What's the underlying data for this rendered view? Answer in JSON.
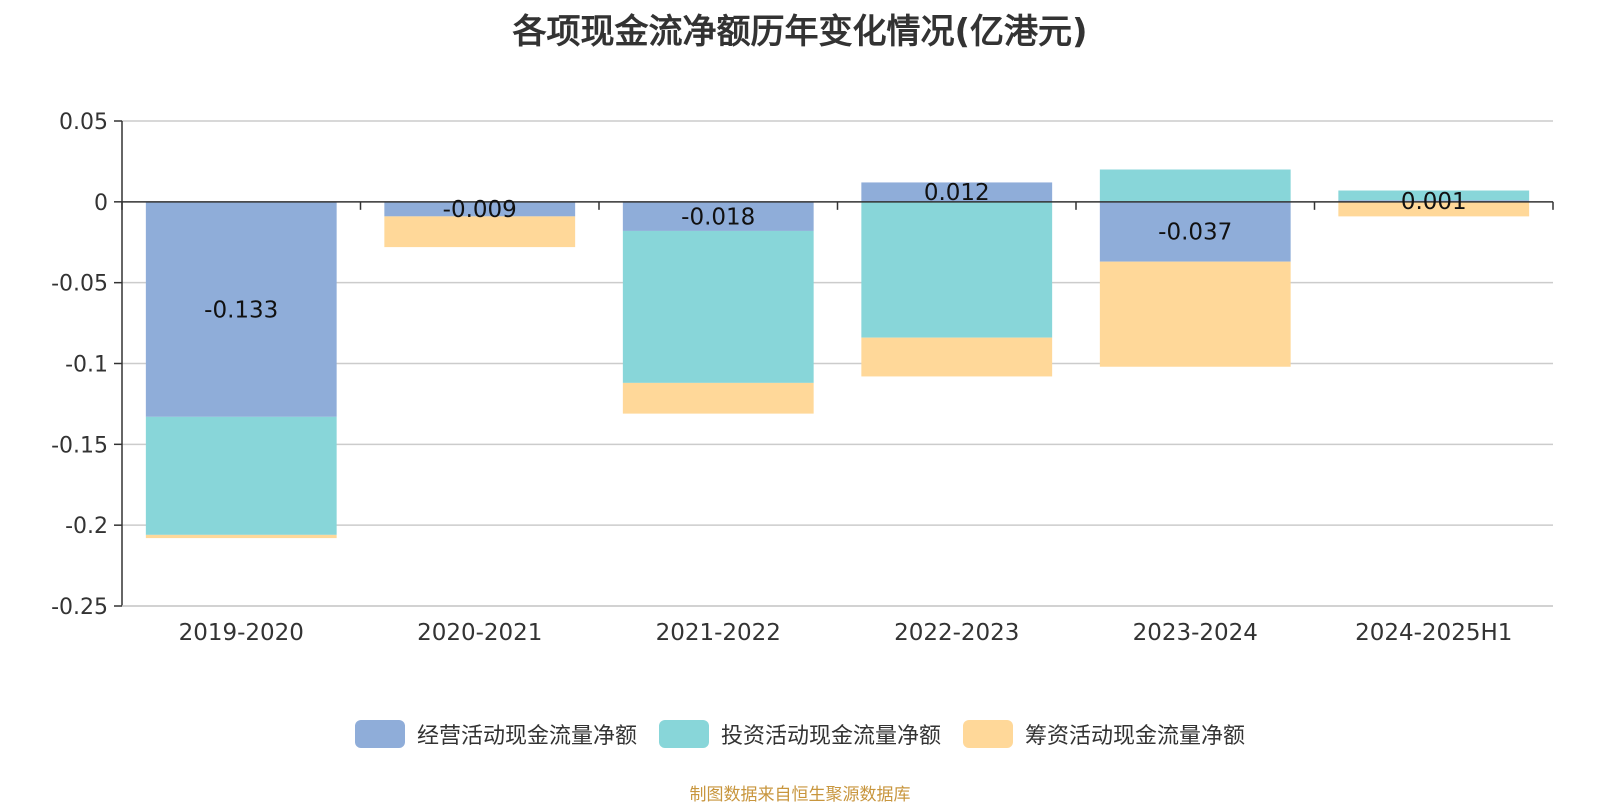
{
  "chart_data": {
    "type": "bar",
    "stacked": true,
    "title": "各项现金流净额历年变化情况(亿港元)",
    "categories": [
      "2019-2020",
      "2020-2021",
      "2021-2022",
      "2022-2023",
      "2023-2024",
      "2024-2025H1"
    ],
    "series": [
      {
        "name": "经营活动现金流量净额",
        "color": "#8fadd9",
        "values": [
          -0.133,
          -0.009,
          -0.018,
          0.012,
          -0.037,
          0.001
        ],
        "labels": [
          "-0.133",
          "-0.009",
          "-0.018",
          "0.012",
          "-0.037",
          "0.001"
        ]
      },
      {
        "name": "投资活动现金流量净额",
        "color": "#88d6d9",
        "values": [
          -0.073,
          0,
          -0.094,
          -0.084,
          0.02,
          0.006
        ]
      },
      {
        "name": "筹资活动现金流量净额",
        "color": "#ffd899",
        "values": [
          -0.002,
          -0.019,
          -0.019,
          -0.024,
          -0.065,
          -0.009
        ]
      }
    ],
    "yticks": [
      "0.05",
      "0",
      "-0.05",
      "-0.1",
      "-0.15",
      "-0.2",
      "-0.25"
    ],
    "ylim": [
      -0.25,
      0.05
    ],
    "grid": true,
    "legend_position": "bottom"
  },
  "source": {
    "text": "制图数据来自恒生聚源数据库",
    "color": "#c8963e"
  }
}
